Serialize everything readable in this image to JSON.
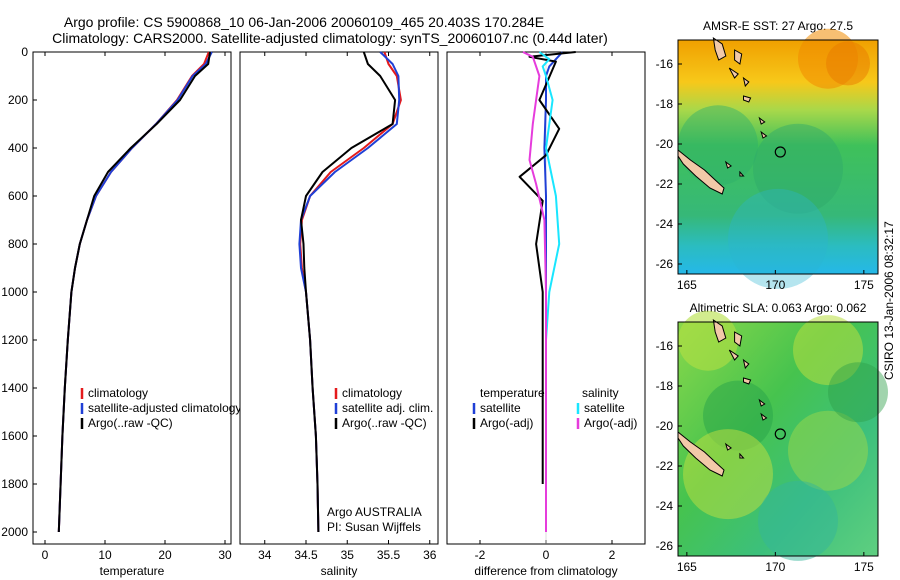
{
  "figure": {
    "title_line1": "Argo profile: CS 5900868_10 06-Jan-2006 20060109_465 20.403S 170.284E",
    "title_line2": "Climatology: CARS2000. Satellite-adjusted climatology: synTS_20060107.nc (0.44d later)",
    "footer_left": "Argo AUSTRALIA",
    "footer_left2": "PI: Susan Wijffels",
    "stamp": "CSIRO 13-Jan-2006 08:32:17"
  },
  "colors": {
    "climatology": "#e41a1c",
    "satellite": "#1f3fd6",
    "argo": "#000000",
    "sat_diff": "#19e6ff",
    "argo_diff": "#e63cdc"
  },
  "chart_data": [
    {
      "type": "line",
      "xlabel": "temperature",
      "xlim": [
        -2,
        31
      ],
      "xticks": [
        0,
        10,
        20,
        30
      ],
      "ylim": [
        2050,
        0
      ],
      "yticks": [
        0,
        200,
        400,
        600,
        800,
        1000,
        1200,
        1400,
        1600,
        1800,
        2000
      ],
      "legend": [
        "climatology",
        "satellite-adjusted climatology",
        "Argo(..raw -QC)"
      ],
      "series": [
        {
          "name": "climatology",
          "color": "climatology",
          "x": [
            27.3,
            26.5,
            24.5,
            22.0,
            18.5,
            14.5,
            11.0,
            8.5,
            7.0,
            5.8,
            5.0,
            4.4,
            3.8,
            3.3,
            2.9,
            2.6,
            2.3
          ],
          "y": [
            0,
            50,
            100,
            200,
            300,
            400,
            500,
            600,
            700,
            800,
            900,
            1000,
            1200,
            1400,
            1600,
            1800,
            2000
          ]
        },
        {
          "name": "satellite-adjusted climatology",
          "color": "satellite",
          "x": [
            27.8,
            26.8,
            24.6,
            22.1,
            18.5,
            14.5,
            11.0,
            8.5,
            7.0,
            5.8,
            5.0,
            4.4,
            3.8,
            3.3,
            2.9,
            2.6,
            2.3
          ],
          "y": [
            0,
            50,
            100,
            200,
            300,
            400,
            500,
            600,
            700,
            800,
            900,
            1000,
            1200,
            1400,
            1600,
            1800,
            2000
          ]
        },
        {
          "name": "Argo(..raw -QC)",
          "color": "argo",
          "x": [
            27.5,
            27.2,
            25.0,
            22.5,
            18.6,
            14.3,
            10.5,
            8.2,
            7.0,
            5.8,
            5.0,
            4.4,
            3.8,
            3.3,
            2.9,
            2.6,
            2.3
          ],
          "y": [
            0,
            50,
            100,
            200,
            300,
            400,
            500,
            600,
            700,
            800,
            900,
            1000,
            1200,
            1400,
            1600,
            1800,
            2000
          ]
        }
      ]
    },
    {
      "type": "line",
      "xlabel": "salinity",
      "xlim": [
        33.7,
        36.1
      ],
      "xticks": [
        34,
        34.5,
        35,
        35.5,
        36
      ],
      "ylim": [
        2050,
        0
      ],
      "yticks": [],
      "legend": [
        "climatology",
        "satellite adj. clim.",
        "Argo(..raw -QC)"
      ],
      "series": [
        {
          "name": "climatology",
          "color": "climatology",
          "x": [
            35.45,
            35.5,
            35.6,
            35.65,
            35.55,
            35.2,
            34.8,
            34.55,
            34.45,
            34.43,
            34.45,
            34.5,
            34.55,
            34.58,
            34.62,
            34.64,
            34.65
          ],
          "y": [
            0,
            50,
            100,
            200,
            300,
            400,
            500,
            600,
            700,
            800,
            900,
            1000,
            1200,
            1400,
            1600,
            1800,
            2000
          ]
        },
        {
          "name": "satellite adj. clim.",
          "color": "satellite",
          "x": [
            35.4,
            35.55,
            35.62,
            35.63,
            35.6,
            35.25,
            34.85,
            34.55,
            34.44,
            34.42,
            34.44,
            34.5,
            34.55,
            34.58,
            34.62,
            34.64,
            34.65
          ],
          "y": [
            0,
            50,
            100,
            200,
            300,
            400,
            500,
            600,
            700,
            800,
            900,
            1000,
            1200,
            1400,
            1600,
            1800,
            2000
          ]
        },
        {
          "name": "Argo(..raw -QC)",
          "color": "argo",
          "x": [
            35.2,
            35.25,
            35.4,
            35.58,
            35.55,
            35.05,
            34.7,
            34.5,
            34.44,
            34.47,
            34.48,
            34.5,
            34.55,
            34.58,
            34.62,
            34.64,
            34.65
          ],
          "y": [
            0,
            50,
            100,
            200,
            300,
            400,
            500,
            600,
            700,
            800,
            900,
            1000,
            1200,
            1400,
            1600,
            1800,
            2000
          ]
        }
      ]
    },
    {
      "type": "line",
      "xlabel": "difference from climatology",
      "xlim": [
        -3,
        3
      ],
      "xticks": [
        -2,
        0,
        2
      ],
      "ylim": [
        2050,
        0
      ],
      "yticks": [],
      "legend_headers": [
        "temperature",
        "salinity"
      ],
      "legend": [
        "satellite",
        "Argo(-adj)",
        "satellite",
        "Argo(-adj)"
      ],
      "series": [
        {
          "name": "temperature satellite",
          "color": "satellite",
          "x": [
            0.5,
            0.3,
            0.1,
            0.0,
            0.0,
            -0.05,
            0.0,
            0.0,
            0.0,
            0.0,
            0.0,
            0.0,
            0.0,
            0.0
          ],
          "y": [
            0,
            30,
            60,
            100,
            200,
            400,
            600,
            800,
            1000,
            1200,
            1400,
            1600,
            1800,
            2000
          ]
        },
        {
          "name": "temperature Argo(-adj)",
          "color": "argo",
          "x": [
            0.9,
            -0.5,
            0.3,
            -0.2,
            0.4,
            0.0,
            -0.8,
            -0.1,
            -0.3,
            -0.1,
            -0.1,
            -0.1,
            -0.1,
            -0.1
          ],
          "y": [
            0,
            20,
            40,
            200,
            320,
            430,
            520,
            620,
            800,
            1000,
            1200,
            1400,
            1600,
            1800
          ]
        },
        {
          "name": "salinity satellite",
          "color": "sat_diff",
          "x": [
            -0.2,
            0.1,
            -0.1,
            0.0,
            0.2,
            0.0,
            0.3,
            0.4,
            0.1,
            0.0,
            0.0,
            0.0,
            0.0,
            0.0
          ],
          "y": [
            0,
            30,
            60,
            100,
            200,
            400,
            600,
            800,
            1000,
            1200,
            1400,
            1600,
            1800,
            2000
          ]
        },
        {
          "name": "salinity Argo(-adj)",
          "color": "argo_diff",
          "x": [
            -0.7,
            -0.4,
            -0.2,
            -0.3,
            -0.4,
            -0.5,
            -0.3,
            -0.05,
            0.0,
            0.0,
            0.0,
            0.0,
            0.0,
            0.0
          ],
          "y": [
            0,
            20,
            100,
            200,
            300,
            450,
            550,
            700,
            1000,
            1200,
            1400,
            1600,
            1800,
            2000
          ]
        }
      ]
    },
    {
      "type": "heatmap",
      "title": "AMSR-E SST: 27 Argo: 27.5",
      "xticks": [
        165,
        170,
        175
      ],
      "yticks": [
        -16,
        -18,
        -20,
        -22,
        -24,
        -26
      ],
      "xlim": [
        164.5,
        175.8
      ],
      "ylim": [
        -26.5,
        -14.8
      ],
      "argo_position": [
        170.28,
        -20.4
      ]
    },
    {
      "type": "heatmap",
      "title": "Altimetric SLA: 0.063 Argo: 0.062",
      "xticks": [
        165,
        170,
        175
      ],
      "yticks": [
        -16,
        -18,
        -20,
        -22,
        -24,
        -26
      ],
      "xlim": [
        164.5,
        175.8
      ],
      "ylim": [
        -26.5,
        -14.8
      ],
      "argo_position": [
        170.28,
        -20.4
      ]
    }
  ]
}
